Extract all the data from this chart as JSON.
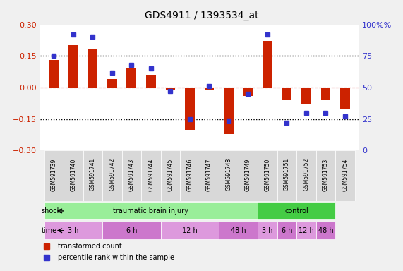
{
  "title": "GDS4911 / 1393534_at",
  "samples": [
    "GSM591739",
    "GSM591740",
    "GSM591741",
    "GSM591742",
    "GSM591743",
    "GSM591744",
    "GSM591745",
    "GSM591746",
    "GSM591747",
    "GSM591748",
    "GSM591749",
    "GSM591750",
    "GSM591751",
    "GSM591752",
    "GSM591753",
    "GSM591754"
  ],
  "transformed_count": [
    0.13,
    0.2,
    0.18,
    0.04,
    0.09,
    0.06,
    -0.01,
    -0.2,
    -0.01,
    -0.22,
    -0.04,
    0.22,
    -0.06,
    -0.08,
    -0.06,
    -0.1
  ],
  "percentile_rank": [
    75,
    92,
    90,
    62,
    68,
    65,
    47,
    25,
    51,
    24,
    45,
    92,
    22,
    30,
    30,
    27
  ],
  "ylim_left": [
    -0.3,
    0.3
  ],
  "ylim_right": [
    0,
    100
  ],
  "yticks_left": [
    -0.3,
    -0.15,
    0.0,
    0.15,
    0.3
  ],
  "yticks_right": [
    0,
    25,
    50,
    75,
    100
  ],
  "bar_color": "#cc2200",
  "dot_color": "#3333cc",
  "background_color": "#f0f0f0",
  "plot_bg_color": "#ffffff",
  "hline_color": "#cc0000",
  "dotted_line_color": "#000000",
  "shock_row": {
    "label": "shock",
    "groups": [
      {
        "text": "traumatic brain injury",
        "start": 0,
        "end": 11,
        "color": "#99ee99"
      },
      {
        "text": "control",
        "start": 11,
        "end": 15,
        "color": "#44cc44"
      }
    ]
  },
  "time_row": {
    "label": "time",
    "groups": [
      {
        "text": "3 h",
        "start": 0,
        "end": 3,
        "color": "#dd99dd"
      },
      {
        "text": "6 h",
        "start": 3,
        "end": 6,
        "color": "#cc77cc"
      },
      {
        "text": "12 h",
        "start": 6,
        "end": 9,
        "color": "#dd99dd"
      },
      {
        "text": "48 h",
        "start": 9,
        "end": 11,
        "color": "#cc77cc"
      },
      {
        "text": "3 h",
        "start": 11,
        "end": 12,
        "color": "#dd99dd"
      },
      {
        "text": "6 h",
        "start": 12,
        "end": 13,
        "color": "#cc77cc"
      },
      {
        "text": "12 h",
        "start": 13,
        "end": 14,
        "color": "#dd99dd"
      },
      {
        "text": "48 h",
        "start": 14,
        "end": 15,
        "color": "#cc77cc"
      }
    ]
  },
  "legend_items": [
    {
      "label": "transformed count",
      "color": "#cc2200",
      "marker": "s"
    },
    {
      "label": "percentile rank within the sample",
      "color": "#3333cc",
      "marker": "s"
    }
  ]
}
